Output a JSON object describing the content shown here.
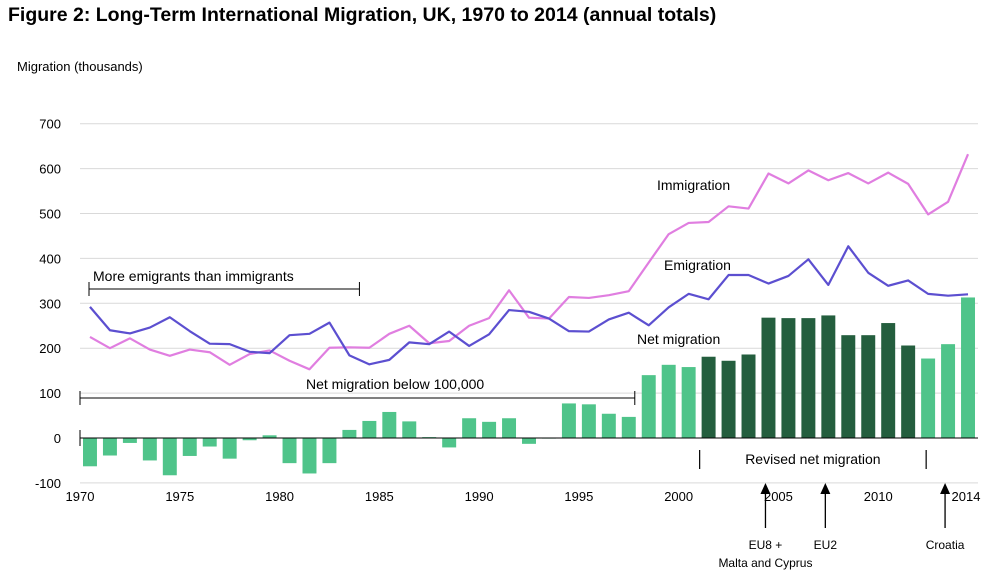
{
  "title": "Figure 2: Long-Term International Migration, UK, 1970 to 2014 (annual totals)",
  "colors": {
    "immigration": "#e07ee0",
    "emigration": "#5c4fd0",
    "net_light": "#4fc48a",
    "net_dark": "#245e3e",
    "grid": "#d9d9d9"
  },
  "chart_data": {
    "type": "bar+line",
    "ylabel": "Migration (thousands)",
    "ylim": [
      -100,
      700
    ],
    "yticks": [
      -100,
      0,
      100,
      200,
      300,
      400,
      500,
      600,
      700
    ],
    "xlim": [
      1970,
      2014
    ],
    "xticks": [
      1970,
      1975,
      1980,
      1985,
      1990,
      1995,
      2000,
      2005,
      2010
    ],
    "xtick_labels": [
      "1970",
      "1975",
      "1980",
      "1985",
      "1990",
      "1995",
      "2000",
      "2005",
      "2010"
    ],
    "last_tick_label": "2014",
    "grid": "horizontal",
    "years": [
      1970,
      1971,
      1972,
      1973,
      1974,
      1975,
      1976,
      1977,
      1978,
      1979,
      1980,
      1981,
      1982,
      1983,
      1984,
      1985,
      1986,
      1987,
      1988,
      1989,
      1990,
      1991,
      1992,
      1993,
      1994,
      1995,
      1996,
      1997,
      1998,
      1999,
      2000,
      2001,
      2002,
      2003,
      2004,
      2005,
      2006,
      2007,
      2008,
      2009,
      2010,
      2011,
      2012,
      2013,
      2014
    ],
    "series": [
      {
        "name": "Immigration",
        "kind": "line",
        "values": [
          225,
          200,
          222,
          197,
          183,
          197,
          191,
          163,
          187,
          195,
          172,
          153,
          201,
          202,
          201,
          232,
          250,
          211,
          216,
          250,
          267,
          329,
          268,
          266,
          314,
          312,
          318,
          327,
          391,
          454,
          479,
          481,
          516,
          511,
          589,
          567,
          596,
          574,
          590,
          567,
          591,
          566,
          498,
          526,
          632
        ]
      },
      {
        "name": "Emigration",
        "kind": "line",
        "values": [
          292,
          240,
          233,
          246,
          269,
          238,
          210,
          209,
          192,
          189,
          229,
          232,
          257,
          184,
          164,
          174,
          213,
          209,
          237,
          205,
          231,
          285,
          281,
          266,
          238,
          237,
          264,
          279,
          251,
          291,
          321,
          309,
          363,
          363,
          344,
          361,
          398,
          341,
          427,
          368,
          339,
          351,
          321,
          317,
          320
        ]
      },
      {
        "name": "Net migration",
        "kind": "bar",
        "values": [
          -63,
          -39,
          -11,
          -50,
          -83,
          -40,
          -19,
          -46,
          -5,
          6,
          -56,
          -79,
          -56,
          18,
          38,
          58,
          37,
          2,
          -21,
          44,
          36,
          44,
          -13,
          0,
          77,
          75,
          54,
          47,
          140,
          163,
          158,
          181,
          172,
          186,
          268,
          267,
          267,
          273,
          229,
          229,
          256,
          206,
          177,
          209,
          313
        ],
        "revised_years": [
          2001,
          2002,
          2003,
          2004,
          2005,
          2006,
          2007,
          2008,
          2009,
          2010,
          2011
        ]
      }
    ],
    "annotations": {
      "immigration_label": "Immigration",
      "emigration_label": "Emigration",
      "net_label": "Net migration",
      "more_emigrants": "More emigrants than immigrants",
      "more_emigrants_range": [
        1970,
        1983
      ],
      "net_below": "Net migration below 100,000",
      "net_below_range": [
        1970,
        1997.3
      ],
      "revised": "Revised net migration",
      "revised_range": [
        2000.5,
        2011.5
      ],
      "events": [
        {
          "year": 2004,
          "lines": [
            "EU8 +",
            "Malta and Cyprus"
          ]
        },
        {
          "year": 2007,
          "lines": [
            "EU2"
          ]
        },
        {
          "year": 2013,
          "lines": [
            "Croatia"
          ]
        }
      ]
    }
  }
}
